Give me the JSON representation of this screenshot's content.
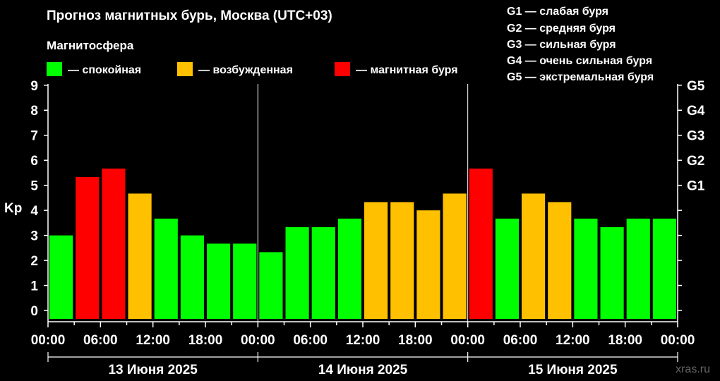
{
  "header": {
    "title": "Прогноз магнитных бурь, Москва (UTC+03)",
    "legend_title": "Магнитосфера"
  },
  "legend": [
    {
      "label": "— спокойная",
      "color": "#00ff00"
    },
    {
      "label": "— возбужденная",
      "color": "#ffc000"
    },
    {
      "label": "— магнитная буря",
      "color": "#ff0000"
    }
  ],
  "storm_scale": [
    "G1 — слабая буря",
    "G2 — средняя буря",
    "G3 — сильная буря",
    "G4 — очень сильная буря",
    "G5 — экстремальная буря"
  ],
  "watermark": "xras.ru",
  "chart_data": {
    "type": "bar",
    "ylabel": "Kp",
    "ylim": [
      0,
      9
    ],
    "yticks": [
      "0",
      "1",
      "2",
      "3",
      "4",
      "5",
      "6",
      "7",
      "8",
      "9"
    ],
    "right_axis": [
      {
        "label": "G1",
        "kp": 5
      },
      {
        "label": "G2",
        "kp": 6
      },
      {
        "label": "G3",
        "kp": 7
      },
      {
        "label": "G4",
        "kp": 8
      },
      {
        "label": "G5",
        "kp": 9
      }
    ],
    "xtick_labels": [
      "00:00",
      "06:00",
      "12:00",
      "18:00",
      "00:00",
      "06:00",
      "12:00",
      "18:00",
      "00:00",
      "06:00",
      "12:00",
      "18:00",
      "00:00"
    ],
    "days": [
      "13 Июня 2025",
      "14 Июня 2025",
      "15 Июня 2025"
    ],
    "interval_hours": 3,
    "values": [
      3.0,
      5.33,
      5.67,
      4.67,
      3.67,
      3.0,
      2.67,
      2.67,
      2.33,
      3.33,
      3.33,
      3.67,
      4.33,
      4.33,
      4.0,
      4.67,
      5.67,
      3.67,
      4.67,
      4.33,
      3.67,
      3.33,
      3.67,
      3.67
    ],
    "colors": [
      "#00ff00",
      "#ff0000",
      "#ff0000",
      "#ffc000",
      "#00ff00",
      "#00ff00",
      "#00ff00",
      "#00ff00",
      "#00ff00",
      "#00ff00",
      "#00ff00",
      "#00ff00",
      "#ffc000",
      "#ffc000",
      "#ffc000",
      "#ffc000",
      "#ff0000",
      "#00ff00",
      "#ffc000",
      "#ffc000",
      "#00ff00",
      "#00ff00",
      "#00ff00",
      "#00ff00"
    ]
  }
}
